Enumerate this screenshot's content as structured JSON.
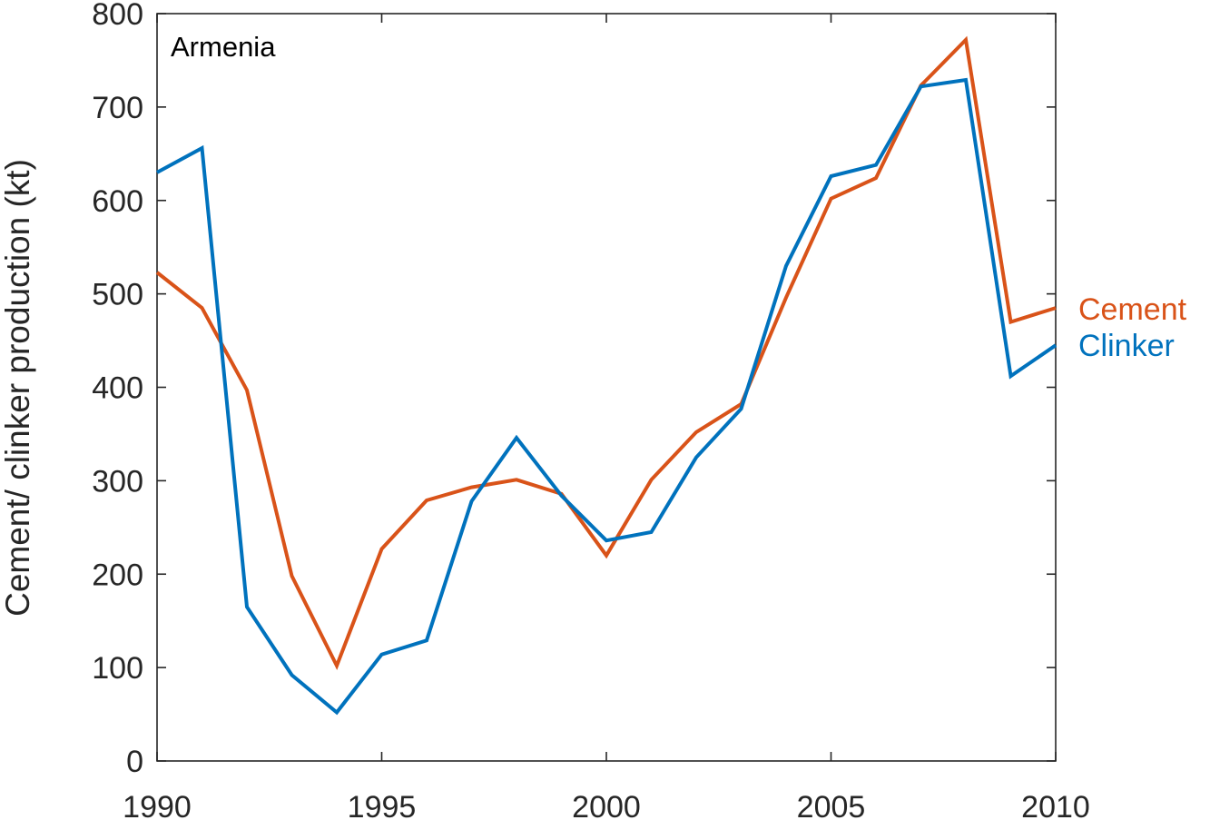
{
  "chart_data": {
    "type": "line",
    "annotation": "Armenia",
    "xlabel": "",
    "ylabel": "Cement/ clinker production (kt)",
    "xlim": [
      1990,
      2010
    ],
    "ylim": [
      0,
      800
    ],
    "x_ticks": [
      "1990",
      "1995",
      "2000",
      "2005",
      "2010"
    ],
    "y_ticks": [
      "0",
      "100",
      "200",
      "300",
      "400",
      "500",
      "600",
      "700",
      "800"
    ],
    "grid": false,
    "legend_placement": "right, at line ends",
    "x": [
      1990,
      1991,
      1992,
      1993,
      1994,
      1995,
      1996,
      1997,
      1998,
      1999,
      2000,
      2001,
      2002,
      2003,
      2004,
      2005,
      2006,
      2007,
      2008,
      2009,
      2010
    ],
    "series": [
      {
        "name": "Cement",
        "color": "#d95319",
        "values": [
          523,
          485,
          397,
          198,
          102,
          227,
          279,
          293,
          301,
          286,
          220,
          301,
          352,
          382,
          496,
          602,
          624,
          723,
          772,
          470,
          485
        ]
      },
      {
        "name": "Clinker",
        "color": "#0072bd",
        "values": [
          630,
          656,
          165,
          92,
          52,
          114,
          129,
          278,
          346,
          284,
          236,
          245,
          325,
          377,
          530,
          626,
          638,
          722,
          729,
          412,
          445
        ]
      }
    ]
  }
}
